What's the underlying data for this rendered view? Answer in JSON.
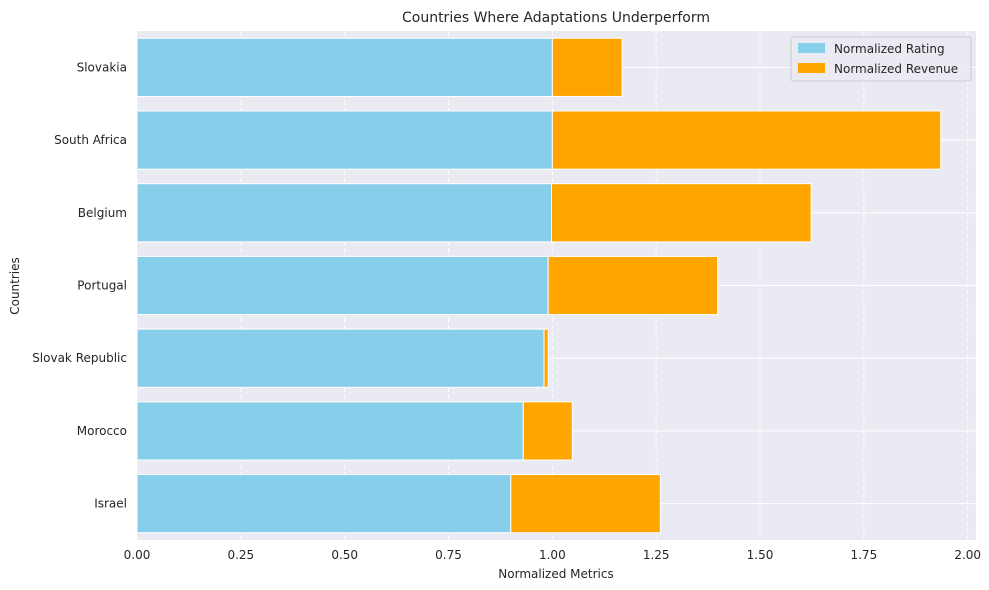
{
  "chart_data": {
    "type": "bar",
    "orientation": "horizontal",
    "stacked": true,
    "title": "Countries Where Adaptations Underperform",
    "xlabel": "Normalized Metrics",
    "ylabel": "Countries",
    "xlim": [
      0,
      2.02
    ],
    "xticks": [
      "0.00",
      "0.25",
      "0.50",
      "0.75",
      "1.00",
      "1.25",
      "1.50",
      "1.75",
      "2.00"
    ],
    "categories": [
      "Slovakia",
      "South Africa",
      "Belgium",
      "Portugal",
      "Slovak Republic",
      "Morocco",
      "Israel"
    ],
    "series": [
      {
        "name": "Normalized Rating",
        "color": "#87CEEB",
        "values": [
          1.0,
          1.0,
          0.998,
          0.99,
          0.98,
          0.93,
          0.9
        ]
      },
      {
        "name": "Normalized Revenue",
        "color": "#FFA500",
        "values": [
          0.168,
          0.935,
          0.625,
          0.408,
          0.01,
          0.118,
          0.36
        ]
      }
    ],
    "grid": true,
    "legend_position": "top-right"
  }
}
